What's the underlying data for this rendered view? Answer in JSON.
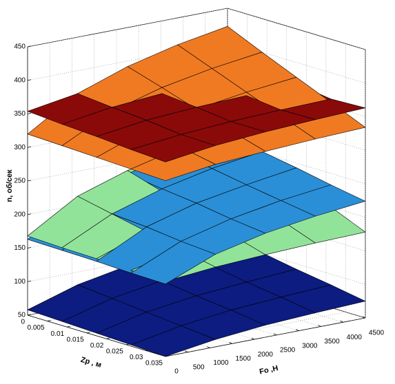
{
  "chart_data": {
    "type": "surface",
    "x_label": "Zp , м",
    "y_label": "Fo ,Н",
    "z_label": "n, об/сек",
    "x": [
      0,
      0.00875,
      0.0175,
      0.02625,
      0.035
    ],
    "y": [
      0,
      1125,
      2250,
      3375,
      4500
    ],
    "xlim": [
      0,
      0.035
    ],
    "xticks": [
      0,
      0.005,
      0.01,
      0.015,
      0.02,
      0.025,
      0.03,
      0.035
    ],
    "ylim": [
      0,
      4500
    ],
    "yticks": [
      0,
      500,
      1000,
      1500,
      2000,
      2500,
      3000,
      3500,
      4000,
      4500
    ],
    "zlim": [
      50,
      450
    ],
    "zticks": [
      50,
      100,
      150,
      200,
      250,
      300,
      350,
      400,
      450
    ],
    "grid": true,
    "series": [
      {
        "color": "#0c1c80",
        "values": [
          [
            58,
            81,
            95,
            104,
            110
          ],
          [
            56,
            76,
            88,
            96,
            101
          ],
          [
            54,
            71,
            81,
            87,
            92
          ],
          [
            52,
            66,
            75,
            80,
            84
          ],
          [
            50,
            61,
            68,
            72,
            75
          ]
        ]
      },
      {
        "color": "#2a8fd6",
        "values": [
          [
            163,
            208,
            232,
            249,
            262
          ],
          [
            162,
            202,
            225,
            241,
            252
          ],
          [
            161,
            198,
            219,
            232,
            243
          ],
          [
            159,
            192,
            211,
            224,
            233
          ],
          [
            158,
            188,
            205,
            216,
            224
          ]
        ]
      },
      {
        "color": "#92e39a",
        "values": [
          [
            168,
            213,
            237,
            254,
            267
          ],
          [
            166,
            202,
            221,
            235,
            245
          ],
          [
            165,
            191,
            205,
            214,
            222
          ],
          [
            163,
            179,
            188,
            195,
            200
          ],
          [
            162,
            169,
            173,
            176,
            178
          ]
        ]
      },
      {
        "color": "#f07a22",
        "values": [
          [
            320,
            366,
            392,
            410,
            423
          ],
          [
            318,
            355,
            376,
            390,
            400
          ],
          [
            316,
            343,
            359,
            370,
            378
          ],
          [
            314,
            332,
            342,
            350,
            356
          ],
          [
            312,
            322,
            327,
            331,
            334
          ]
        ]
      },
      {
        "color": "#8a0a0a",
        "values": [
          [
            354,
            366,
            372,
            377,
            380
          ],
          [
            350,
            361,
            367,
            371,
            374
          ],
          [
            347,
            357,
            362,
            365,
            368
          ],
          [
            343,
            351,
            356,
            359,
            361
          ],
          [
            340,
            350,
            356,
            360,
            363
          ]
        ]
      }
    ]
  }
}
